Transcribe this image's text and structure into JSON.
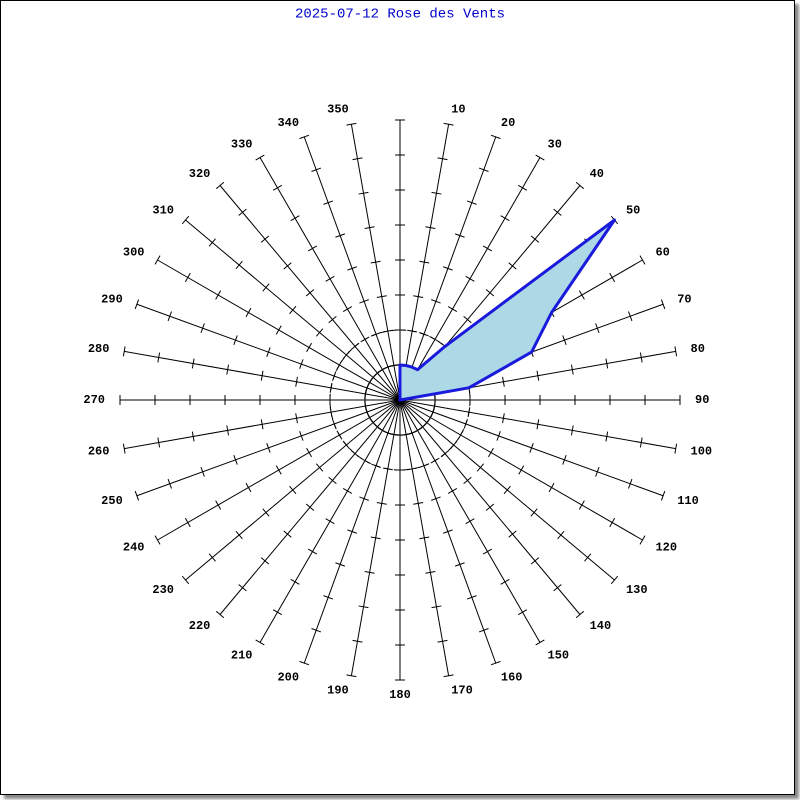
{
  "chart_data": {
    "type": "radar",
    "title": "2025-07-12 Rose des Vents",
    "categories": [
      null,
      10,
      20,
      30,
      40,
      50,
      60,
      70,
      80,
      90,
      100,
      110,
      120,
      130,
      140,
      150,
      160,
      170,
      180,
      190,
      200,
      210,
      220,
      230,
      240,
      250,
      260,
      270,
      280,
      290,
      300,
      310,
      320,
      330,
      340,
      350
    ],
    "values": [
      1,
      1,
      1,
      1,
      2,
      8,
      5,
      4,
      2,
      0,
      0,
      0,
      0,
      0,
      0,
      0,
      0,
      0,
      0,
      0,
      0,
      0,
      0,
      0,
      0,
      0,
      0,
      0,
      0,
      0,
      0,
      0,
      0,
      0,
      0,
      0
    ],
    "color": "#1a1adc",
    "fill": "#add8e6",
    "rlim": [
      0,
      8
    ],
    "rticks": [
      1,
      2,
      3,
      4,
      5,
      6,
      7,
      8
    ],
    "rings": [
      1,
      2
    ]
  }
}
